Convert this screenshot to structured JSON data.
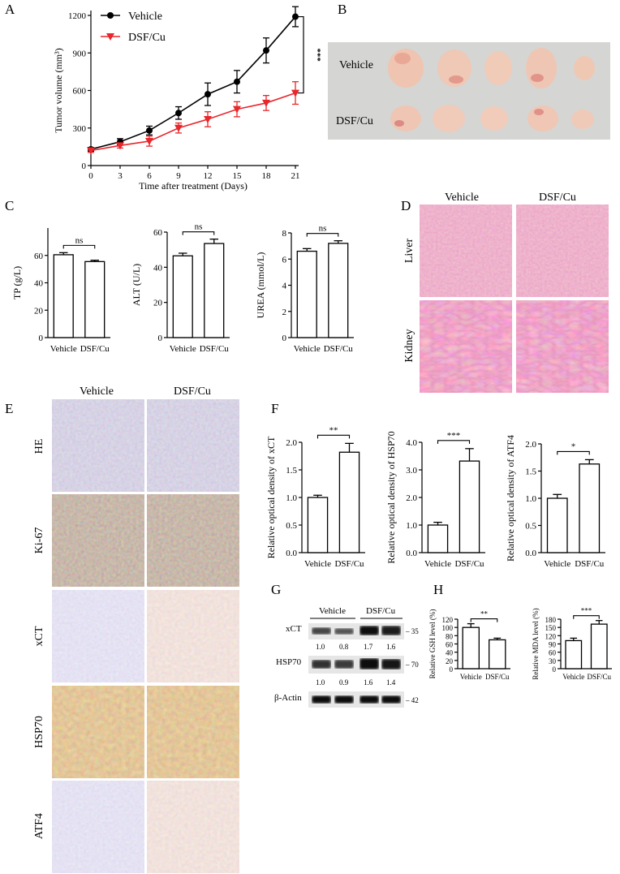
{
  "panel_labels": {
    "A": "A",
    "B": "B",
    "C": "C",
    "D": "D",
    "E": "E",
    "F": "F",
    "G": "G",
    "H": "H"
  },
  "colors": {
    "vehicle": "#000000",
    "dsf": "#e8262b",
    "tissue_he": "#d9678e",
    "tissue_ihc_brown": "#b9814a",
    "tissue_purple": "#9c8cb8",
    "photo_bg": "#d5d5d3"
  },
  "panel_b": {
    "row_labels": [
      "Vehicle",
      "DSF/Cu"
    ]
  },
  "panel_d": {
    "col_labels": [
      "Vehicle",
      "DSF/Cu"
    ],
    "row_labels": [
      "Liver",
      "Kidney"
    ]
  },
  "panel_e": {
    "col_labels": [
      "Vehicle",
      "DSF/Cu"
    ],
    "row_labels": [
      "HE",
      "Ki-67",
      "xCT",
      "HSP70",
      "ATF4"
    ]
  },
  "panel_g": {
    "group_labels": [
      "Vehicle",
      "DSF/Cu"
    ],
    "bands": [
      {
        "name": "xCT",
        "marker": "35",
        "values": [
          "1.0",
          "0.8",
          "1.7",
          "1.6"
        ]
      },
      {
        "name": "HSP70",
        "marker": "70",
        "values": [
          "1.0",
          "0.9",
          "1.6",
          "1.4"
        ]
      },
      {
        "name": "β-Actin",
        "marker": "42",
        "values": []
      }
    ]
  },
  "chart_data": [
    {
      "id": "A",
      "type": "line",
      "xlabel": "Time after treatment (Days)",
      "ylabel": "Tumor volume (mm³)",
      "x": [
        0,
        3,
        6,
        9,
        12,
        15,
        18,
        21
      ],
      "xlim": [
        0,
        21
      ],
      "ylim": [
        0,
        1200
      ],
      "yticks": [
        0,
        300,
        600,
        900,
        1200
      ],
      "series": [
        {
          "name": "Vehicle",
          "color": "#000000",
          "marker": "circle",
          "values": [
            130,
            190,
            280,
            420,
            570,
            670,
            920,
            1190
          ],
          "err": [
            15,
            25,
            35,
            50,
            90,
            90,
            100,
            80
          ]
        },
        {
          "name": "DSF/Cu",
          "color": "#e8262b",
          "marker": "triangle",
          "values": [
            120,
            160,
            195,
            300,
            370,
            450,
            500,
            580
          ],
          "err": [
            15,
            20,
            40,
            40,
            60,
            60,
            60,
            90
          ]
        }
      ],
      "significance": "***",
      "legend": "top-left"
    },
    {
      "id": "C1",
      "type": "bar",
      "categories": [
        "Vehicle",
        "DSF/Cu"
      ],
      "values": [
        60.5,
        55.5
      ],
      "err": [
        1.5,
        1
      ],
      "ylabel": "TP (g/L)",
      "ylim": [
        0,
        80
      ],
      "yticks": [
        0,
        20,
        40,
        60
      ],
      "significance": "ns"
    },
    {
      "id": "C2",
      "type": "bar",
      "categories": [
        "Vehicle",
        "DSF/Cu"
      ],
      "values": [
        46.5,
        53.5
      ],
      "err": [
        1.5,
        2.5
      ],
      "ylabel": "ALT (U/L)",
      "ylim": [
        0,
        60
      ],
      "yticks": [
        0,
        20,
        40,
        60
      ],
      "significance": "ns"
    },
    {
      "id": "C3",
      "type": "bar",
      "categories": [
        "Vehicle",
        "DSF/Cu"
      ],
      "values": [
        6.6,
        7.2
      ],
      "err": [
        0.2,
        0.2
      ],
      "ylabel": "UREA (mmol/L)",
      "ylim": [
        0,
        8
      ],
      "yticks": [
        0,
        2,
        4,
        6,
        8
      ],
      "significance": "ns"
    },
    {
      "id": "F1",
      "type": "bar",
      "categories": [
        "Vehicle",
        "DSF/Cu"
      ],
      "values": [
        1.0,
        1.82
      ],
      "err": [
        0.04,
        0.16
      ],
      "ylabel": "Relative optical density of xCT",
      "ylim": [
        0,
        2.0
      ],
      "yticks": [
        "0.0",
        "0.5",
        "1.0",
        "1.5",
        "2.0"
      ],
      "significance": "**"
    },
    {
      "id": "F2",
      "type": "bar",
      "categories": [
        "Vehicle",
        "DSF/Cu"
      ],
      "values": [
        1.0,
        3.32
      ],
      "err": [
        0.1,
        0.45
      ],
      "ylabel": "Relative optical density of HSP70",
      "ylim": [
        0,
        4.0
      ],
      "yticks": [
        "0.0",
        "1.0",
        "2.0",
        "3.0",
        "4.0"
      ],
      "significance": "***"
    },
    {
      "id": "F3",
      "type": "bar",
      "categories": [
        "Vehicle",
        "DSF/Cu"
      ],
      "values": [
        1.0,
        1.63
      ],
      "err": [
        0.07,
        0.08
      ],
      "ylabel": "Relative optical density of ATF4",
      "ylim": [
        0,
        2.0
      ],
      "yticks": [
        "0.0",
        "0.5",
        "1.0",
        "1.5",
        "2.0"
      ],
      "significance": "*"
    },
    {
      "id": "H1",
      "type": "bar",
      "categories": [
        "Vehicle",
        "DSF/Cu"
      ],
      "values": [
        100,
        70
      ],
      "err": [
        9,
        4
      ],
      "ylabel": "Relative GSH level (%)",
      "ylim": [
        0,
        120
      ],
      "yticks": [
        0,
        20,
        40,
        60,
        80,
        100,
        120
      ],
      "significance": "**"
    },
    {
      "id": "H2",
      "type": "bar",
      "categories": [
        "Vehicle",
        "DSF/Cu"
      ],
      "values": [
        102,
        162
      ],
      "err": [
        9,
        13
      ],
      "ylabel": "Relative MDA level (%)",
      "ylim": [
        0,
        180
      ],
      "yticks": [
        0,
        30,
        60,
        90,
        120,
        150,
        180
      ],
      "significance": "***"
    }
  ]
}
